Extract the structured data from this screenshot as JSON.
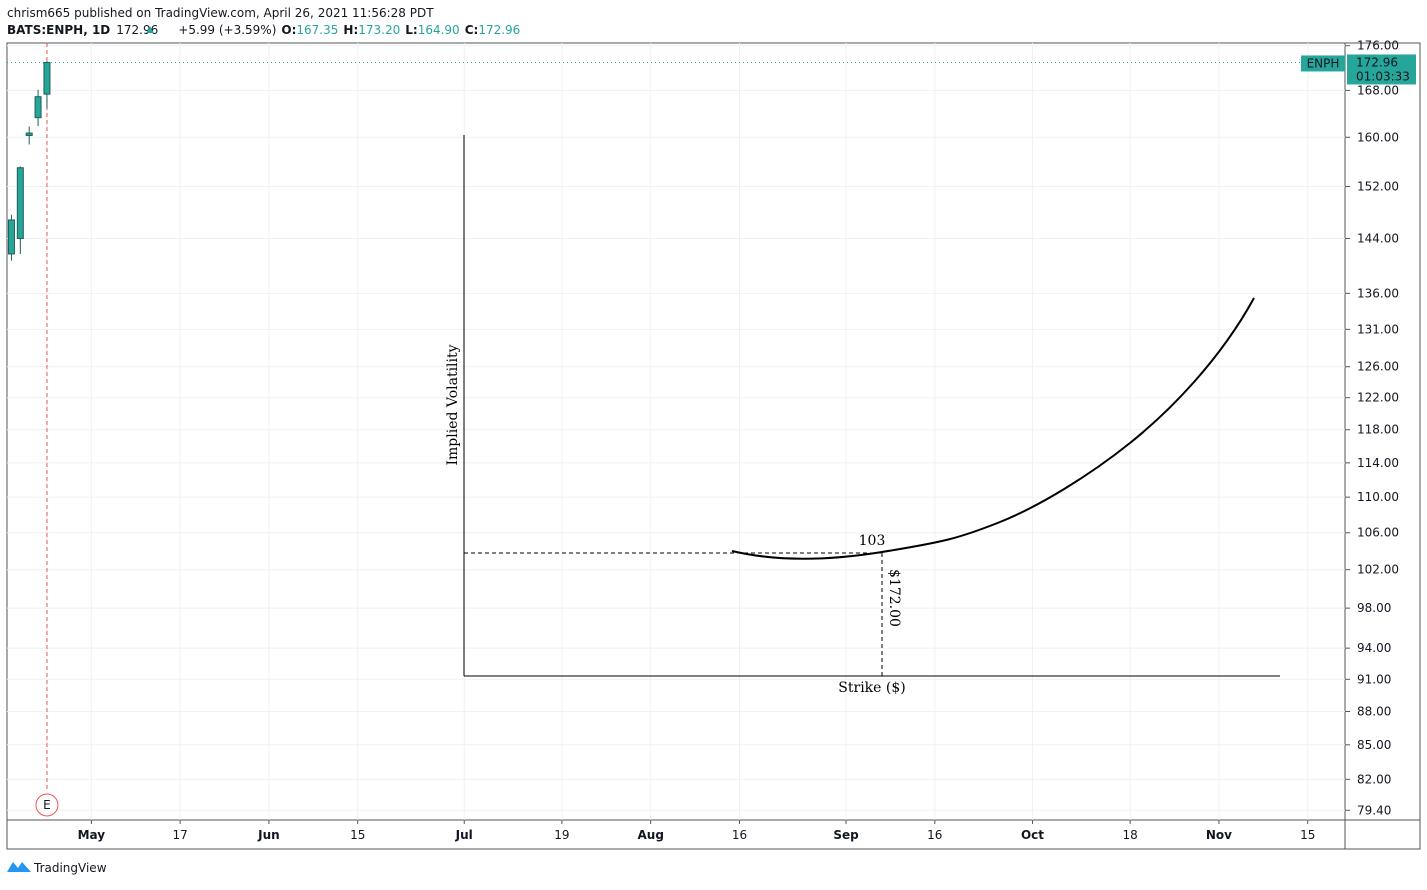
{
  "header": {
    "publisher": "chrism665 published on TradingView.com, April 26, 2021 11:56:28 PDT"
  },
  "chart_data": {
    "type": "candlestick",
    "symbol": "BATS:ENPH, 1D",
    "change_label": "+5.99 (+3.59%)",
    "ohlc_names": [
      "O:",
      "H:",
      "L:",
      "C:"
    ],
    "ohlc_value_labels": [
      "167.35",
      "173.20",
      "164.90",
      "172.96"
    ],
    "countdown": "01:03:33",
    "earnings_marker": "E",
    "series": [
      {
        "name": "ENPH",
        "color": "#26a69a",
        "x": [
          -4,
          -3,
          -2,
          -1,
          0
        ],
        "open": [
          141.7,
          144.0,
          160.3,
          163.3,
          167.35
        ],
        "high": [
          147.6,
          155.2,
          161.8,
          168.1,
          173.2
        ],
        "low": [
          140.7,
          141.7,
          158.8,
          161.9,
          164.9
        ],
        "close": [
          146.8,
          155.0,
          160.7,
          166.9,
          172.96
        ]
      }
    ],
    "xlim": [
      -4.5,
      146.2
    ],
    "xticks": [
      {
        "value": 5,
        "label": "May"
      },
      {
        "value": 15,
        "label": "17"
      },
      {
        "value": 25,
        "label": "Jun"
      },
      {
        "value": 35,
        "label": "15"
      },
      {
        "value": 47,
        "label": "Jul"
      },
      {
        "value": 58,
        "label": "19"
      },
      {
        "value": 68,
        "label": "Aug"
      },
      {
        "value": 78,
        "label": "16"
      },
      {
        "value": 90,
        "label": "Sep"
      },
      {
        "value": 100,
        "label": "16"
      },
      {
        "value": 111,
        "label": "Oct"
      },
      {
        "value": 122,
        "label": "18"
      },
      {
        "value": 132,
        "label": "Nov"
      },
      {
        "value": 142,
        "label": "15"
      }
    ],
    "ylim": [
      78.6,
      176.5
    ],
    "log_scale": true,
    "grid": true,
    "yticks": [
      {
        "value": 176,
        "label": "176.00"
      },
      {
        "value": 168,
        "label": "168.00"
      },
      {
        "value": 160,
        "label": "160.00"
      },
      {
        "value": 152,
        "label": "152.00"
      },
      {
        "value": 144,
        "label": "144.00"
      },
      {
        "value": 136,
        "label": "136.00"
      },
      {
        "value": 131,
        "label": "131.00"
      },
      {
        "value": 126,
        "label": "126.00"
      },
      {
        "value": 122,
        "label": "122.00"
      },
      {
        "value": 118,
        "label": "118.00"
      },
      {
        "value": 114,
        "label": "114.00"
      },
      {
        "value": 110,
        "label": "110.00"
      },
      {
        "value": 106,
        "label": "106.00"
      },
      {
        "value": 102,
        "label": "102.00"
      },
      {
        "value": 98,
        "label": "98.00"
      },
      {
        "value": 94,
        "label": "94.00"
      },
      {
        "value": 91,
        "label": "91.00"
      },
      {
        "value": 88,
        "label": "88.00"
      },
      {
        "value": 85,
        "label": "85.00"
      },
      {
        "value": 82,
        "label": "82.00"
      },
      {
        "value": 79.4,
        "label": "79.40"
      }
    ]
  },
  "annotation": {
    "y_label": "Implied Volatility",
    "x_label": "Strike ($)",
    "level_label": "103",
    "strike_label": "$172.00"
  },
  "footer": {
    "brand": "TradingView"
  }
}
